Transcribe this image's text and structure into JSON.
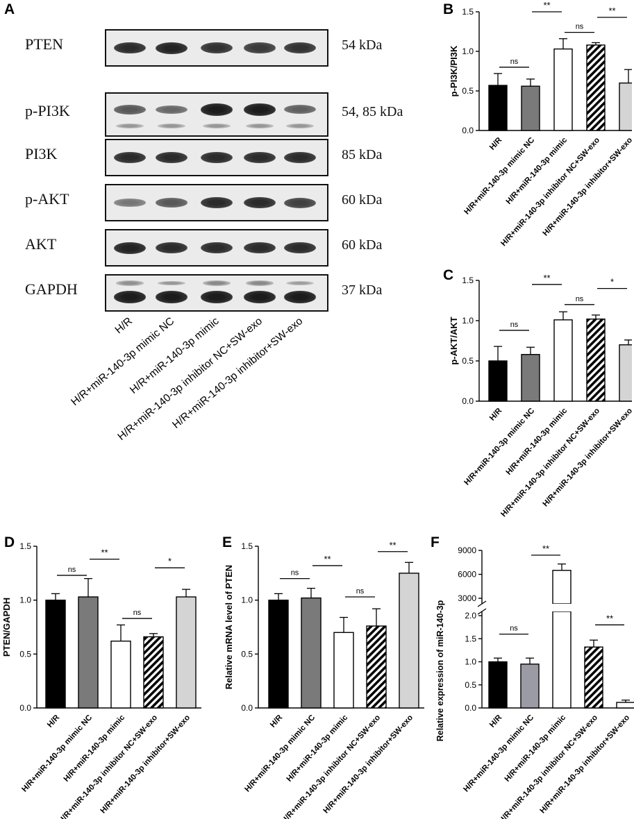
{
  "panel_letters": {
    "a": "A",
    "b": "B",
    "c": "C",
    "d": "D",
    "e": "E",
    "f": "F"
  },
  "groups": [
    "H/R",
    "H/R+miR-140-3p mimic NC",
    "H/R+miR-140-3p mimic",
    "H/R+miR-140-3p inhibitor NC+SW-exo",
    "H/R+miR-140-3p inhibitor+SW-exo"
  ],
  "blot": {
    "rows": [
      {
        "protein": "PTEN",
        "kda": "54 kDa",
        "bands": [
          0.85,
          0.9,
          0.8,
          0.75,
          0.8
        ],
        "lower": null
      },
      {
        "protein": "p-PI3K",
        "kda": "54, 85 kDa",
        "bands": [
          0.55,
          0.45,
          0.95,
          0.95,
          0.5
        ],
        "lower": [
          0.3,
          0.3,
          0.3,
          0.3,
          0.3
        ]
      },
      {
        "protein": "PI3K",
        "kda": "85 kDa",
        "bands": [
          0.85,
          0.85,
          0.85,
          0.85,
          0.85
        ],
        "lower": null
      },
      {
        "protein": "p-AKT",
        "kda": "60 kDa",
        "bands": [
          0.35,
          0.55,
          0.85,
          0.85,
          0.7
        ],
        "lower": null
      },
      {
        "protein": "AKT",
        "kda": "60 kDa",
        "bands": [
          0.9,
          0.85,
          0.85,
          0.85,
          0.85
        ],
        "lower": null
      },
      {
        "protein": "GAPDH",
        "kda": "37 kDa",
        "bands": [
          0.95,
          0.95,
          0.95,
          0.95,
          0.95
        ],
        "upper": [
          0.35,
          0.3,
          0.4,
          0.4,
          0.25
        ]
      }
    ]
  },
  "colors": {
    "black": "#000000",
    "dark_gray": "#7a7a7a",
    "white": "#ffffff",
    "hatched": "hatch",
    "light_gray": "#d4d4d4",
    "f_gray": "#9b9ba6"
  },
  "chart_data": [
    {
      "id": "B",
      "type": "bar",
      "ylabel": "p-PI3K/PI3K",
      "categories": [
        "H/R",
        "H/R+miR-140-3p mimic NC",
        "H/R+miR-140-3p mimic",
        "H/R+miR-140-3p inhibitor NC+SW-exo",
        "H/R+miR-140-3p inhibitor+SW-exo"
      ],
      "values": [
        0.57,
        0.56,
        1.03,
        1.08,
        0.6
      ],
      "errors": [
        0.15,
        0.09,
        0.13,
        0.03,
        0.17
      ],
      "ylim": [
        0,
        1.5
      ],
      "yticks": [
        0.0,
        0.5,
        1.0,
        1.5
      ],
      "fills": [
        "black",
        "dark_gray",
        "white",
        "hatched",
        "light_gray"
      ],
      "sig": [
        {
          "from": 0,
          "to": 1,
          "label": "ns",
          "y": 0.8
        },
        {
          "from": 1,
          "to": 2,
          "label": "**",
          "y": 1.5
        },
        {
          "from": 2,
          "to": 3,
          "label": "ns",
          "y": 1.24
        },
        {
          "from": 3,
          "to": 4,
          "label": "**",
          "y": 1.43
        }
      ]
    },
    {
      "id": "C",
      "type": "bar",
      "ylabel": "p-AKT/AKT",
      "categories": [
        "H/R",
        "H/R+miR-140-3p mimic NC",
        "H/R+miR-140-3p mimic",
        "H/R+miR-140-3p inhibitor NC+SW-exo",
        "H/R+miR-140-3p inhibitor+SW-exo"
      ],
      "values": [
        0.5,
        0.58,
        1.01,
        1.02,
        0.7
      ],
      "errors": [
        0.18,
        0.09,
        0.1,
        0.05,
        0.06
      ],
      "ylim": [
        0,
        1.5
      ],
      "yticks": [
        0.0,
        0.5,
        1.0,
        1.5
      ],
      "fills": [
        "black",
        "dark_gray",
        "white",
        "hatched",
        "light_gray"
      ],
      "sig": [
        {
          "from": 0,
          "to": 1,
          "label": "ns",
          "y": 0.88
        },
        {
          "from": 1,
          "to": 2,
          "label": "**",
          "y": 1.45
        },
        {
          "from": 2,
          "to": 3,
          "label": "ns",
          "y": 1.2
        },
        {
          "from": 3,
          "to": 4,
          "label": "*",
          "y": 1.4
        }
      ]
    },
    {
      "id": "D",
      "type": "bar",
      "ylabel": "PTEN/GAPDH",
      "categories": [
        "H/R",
        "H/R+miR-140-3p mimic NC",
        "H/R+miR-140-3p mimic",
        "H/R+miR-140-3p inhibitor NC+SW-exo",
        "H/R+miR-140-3p inhibitor+SW-exo"
      ],
      "values": [
        1.0,
        1.03,
        0.62,
        0.66,
        1.03
      ],
      "errors": [
        0.06,
        0.17,
        0.15,
        0.03,
        0.07
      ],
      "ylim": [
        0,
        1.5
      ],
      "yticks": [
        0.0,
        0.5,
        1.0,
        1.5
      ],
      "fills": [
        "black",
        "dark_gray",
        "white",
        "hatched",
        "light_gray"
      ],
      "sig": [
        {
          "from": 0,
          "to": 1,
          "label": "ns",
          "y": 1.23
        },
        {
          "from": 1,
          "to": 2,
          "label": "**",
          "y": 1.38
        },
        {
          "from": 2,
          "to": 3,
          "label": "ns",
          "y": 0.83
        },
        {
          "from": 3,
          "to": 4,
          "label": "*",
          "y": 1.3
        }
      ]
    },
    {
      "id": "E",
      "type": "bar",
      "ylabel": "Relative mRNA level of PTEN",
      "categories": [
        "H/R",
        "H/R+miR-140-3p mimic NC",
        "H/R+miR-140-3p mimic",
        "H/R+miR-140-3p inhibitor NC+SW-exo",
        "H/R+miR-140-3p inhibitor+SW-exo"
      ],
      "values": [
        1.0,
        1.02,
        0.7,
        0.76,
        1.25
      ],
      "errors": [
        0.06,
        0.09,
        0.14,
        0.16,
        0.1
      ],
      "ylim": [
        0,
        1.5
      ],
      "yticks": [
        0.0,
        0.5,
        1.0,
        1.5
      ],
      "fills": [
        "black",
        "dark_gray",
        "white",
        "hatched",
        "light_gray"
      ],
      "sig": [
        {
          "from": 0,
          "to": 1,
          "label": "ns",
          "y": 1.2
        },
        {
          "from": 1,
          "to": 2,
          "label": "**",
          "y": 1.32
        },
        {
          "from": 2,
          "to": 3,
          "label": "ns",
          "y": 1.03
        },
        {
          "from": 3,
          "to": 4,
          "label": "**",
          "y": 1.45
        }
      ]
    },
    {
      "id": "F",
      "type": "bar",
      "ylabel": "Relative expression of miR-140-3p",
      "categories": [
        "H/R",
        "H/R+miR-140-3p mimic NC",
        "H/R+miR-140-3p mimic",
        "H/R+miR-140-3p inhibitor NC+SW-exo",
        "H/R+miR-140-3p inhibitor+SW-exo"
      ],
      "values": [
        1.0,
        0.95,
        6500,
        1.32,
        0.12
      ],
      "errors": [
        0.08,
        0.13,
        800,
        0.15,
        0.05
      ],
      "axis_break": true,
      "ylim_lower": [
        0,
        2.0
      ],
      "yticks_lower": [
        0.0,
        0.5,
        1.0,
        1.5,
        2.0
      ],
      "ylim_upper": [
        0,
        9000
      ],
      "yticks_upper": [
        3000,
        6000,
        9000
      ],
      "fills": [
        "black",
        "f_gray",
        "white",
        "hatched",
        "white"
      ],
      "sig": [
        {
          "from": 0,
          "to": 1,
          "label": "ns",
          "part": "lower",
          "y": 1.6
        },
        {
          "from": 1,
          "to": 2,
          "label": "**",
          "part": "upper",
          "y": 8400
        },
        {
          "from": 3,
          "to": 4,
          "label": "**",
          "part": "lower",
          "y": 1.8
        }
      ]
    }
  ]
}
